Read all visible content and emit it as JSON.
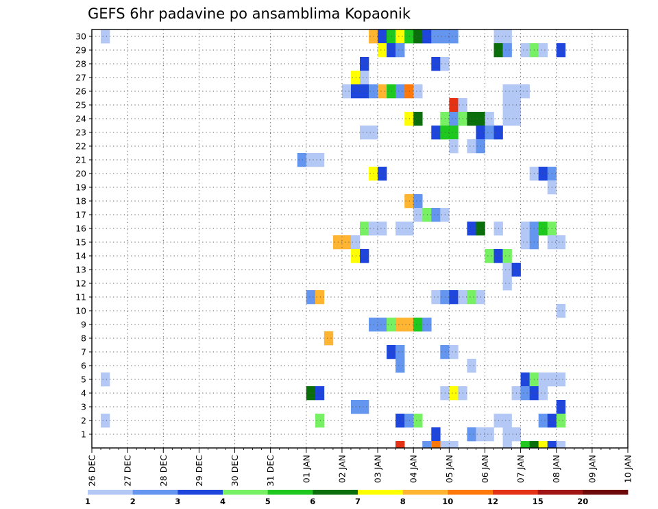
{
  "chart_data": {
    "type": "heatmap",
    "title": "GEFS 6hr padavine po ansamblima Kopaonik",
    "x_labels": [
      "26 DEC",
      "27 DEC",
      "28 DEC",
      "29 DEC",
      "30 DEC",
      "31 DEC",
      "01 JAN",
      "02 JAN",
      "03 JAN",
      "04 JAN",
      "05 JAN",
      "06 JAN",
      "07 JAN",
      "08 JAN",
      "09 JAN",
      "10 JAN"
    ],
    "y_labels": [
      "1",
      "2",
      "3",
      "4",
      "5",
      "6",
      "7",
      "8",
      "9",
      "10",
      "11",
      "12",
      "13",
      "14",
      "15",
      "16",
      "17",
      "18",
      "19",
      "20",
      "21",
      "22",
      "23",
      "24",
      "25",
      "26",
      "27",
      "28",
      "29",
      "30"
    ],
    "color_levels": [
      "1",
      "2",
      "3",
      "4",
      "5",
      "6",
      "7",
      "8",
      "10",
      "12",
      "15",
      "20"
    ],
    "color_scale": [
      "#b4c8f5",
      "#6496f0",
      "#1e46dc",
      "#78f064",
      "#1ec81e",
      "#0a6e0a",
      "#ffff00",
      "#ffb432",
      "#ff780a",
      "#e63214",
      "#a01414",
      "#6e0a0a"
    ],
    "grid": true,
    "steps_per_day": 4,
    "cells": [
      {
        "m": 30,
        "t": [
          [
            1,
            0
          ],
          [
            31,
            7
          ],
          [
            32,
            2
          ],
          [
            33,
            4
          ],
          [
            34,
            6
          ],
          [
            35,
            4
          ],
          [
            36,
            5
          ],
          [
            37,
            2
          ],
          [
            38,
            1
          ],
          [
            39,
            1
          ],
          [
            40,
            1
          ],
          [
            45,
            0
          ],
          [
            46,
            0
          ]
        ]
      },
      {
        "m": 29,
        "t": [
          [
            32,
            6
          ],
          [
            33,
            2
          ],
          [
            34,
            1
          ],
          [
            45,
            5
          ],
          [
            46,
            1
          ],
          [
            48,
            0
          ],
          [
            49,
            3
          ],
          [
            50,
            0
          ],
          [
            52,
            2
          ]
        ]
      },
      {
        "m": 28,
        "t": [
          [
            30,
            2
          ],
          [
            38,
            2
          ],
          [
            39,
            0
          ]
        ]
      },
      {
        "m": 27,
        "t": [
          [
            29,
            6
          ],
          [
            30,
            0
          ]
        ]
      },
      {
        "m": 26,
        "t": [
          [
            28,
            0
          ],
          [
            29,
            2
          ],
          [
            30,
            2
          ],
          [
            31,
            1
          ],
          [
            32,
            7
          ],
          [
            33,
            4
          ],
          [
            34,
            1
          ],
          [
            35,
            8
          ],
          [
            36,
            0
          ],
          [
            46,
            0
          ],
          [
            47,
            0
          ],
          [
            48,
            0
          ]
        ]
      },
      {
        "m": 25,
        "t": [
          [
            40,
            9
          ],
          [
            41,
            0
          ],
          [
            46,
            0
          ],
          [
            47,
            0
          ]
        ]
      },
      {
        "m": 24,
        "t": [
          [
            35,
            6
          ],
          [
            36,
            5
          ],
          [
            39,
            3
          ],
          [
            40,
            1
          ],
          [
            41,
            3
          ],
          [
            42,
            5
          ],
          [
            43,
            5
          ],
          [
            44,
            0
          ],
          [
            46,
            0
          ],
          [
            47,
            0
          ]
        ]
      },
      {
        "m": 23,
        "t": [
          [
            30,
            0
          ],
          [
            31,
            0
          ],
          [
            38,
            2
          ],
          [
            39,
            4
          ],
          [
            40,
            4
          ],
          [
            43,
            2
          ],
          [
            44,
            1
          ],
          [
            45,
            2
          ]
        ]
      },
      {
        "m": 22,
        "t": [
          [
            40,
            0
          ],
          [
            42,
            0
          ],
          [
            43,
            1
          ]
        ]
      },
      {
        "m": 21,
        "t": [
          [
            23,
            1
          ],
          [
            24,
            0
          ],
          [
            25,
            0
          ]
        ]
      },
      {
        "m": 20,
        "t": [
          [
            31,
            6
          ],
          [
            32,
            2
          ],
          [
            49,
            0
          ],
          [
            50,
            2
          ],
          [
            51,
            1
          ]
        ]
      },
      {
        "m": 19,
        "t": [
          [
            51,
            0
          ]
        ]
      },
      {
        "m": 18,
        "t": [
          [
            35,
            7
          ],
          [
            36,
            1
          ]
        ]
      },
      {
        "m": 17,
        "t": [
          [
            36,
            0
          ],
          [
            37,
            3
          ],
          [
            38,
            1
          ],
          [
            39,
            0
          ]
        ]
      },
      {
        "m": 16,
        "t": [
          [
            30,
            3
          ],
          [
            31,
            0
          ],
          [
            32,
            0
          ],
          [
            34,
            0
          ],
          [
            35,
            0
          ],
          [
            42,
            2
          ],
          [
            43,
            5
          ],
          [
            45,
            0
          ],
          [
            48,
            0
          ],
          [
            49,
            1
          ],
          [
            50,
            4
          ],
          [
            51,
            3
          ]
        ]
      },
      {
        "m": 15,
        "t": [
          [
            27,
            7
          ],
          [
            28,
            7
          ],
          [
            29,
            0
          ],
          [
            48,
            0
          ],
          [
            49,
            1
          ],
          [
            51,
            0
          ],
          [
            52,
            0
          ]
        ]
      },
      {
        "m": 14,
        "t": [
          [
            29,
            6
          ],
          [
            30,
            2
          ],
          [
            44,
            3
          ],
          [
            45,
            2
          ],
          [
            46,
            3
          ]
        ]
      },
      {
        "m": 13,
        "t": [
          [
            46,
            0
          ],
          [
            47,
            2
          ]
        ]
      },
      {
        "m": 12,
        "t": [
          [
            46,
            0
          ]
        ]
      },
      {
        "m": 11,
        "t": [
          [
            24,
            1
          ],
          [
            25,
            7
          ],
          [
            38,
            0
          ],
          [
            39,
            1
          ],
          [
            40,
            2
          ],
          [
            41,
            0
          ],
          [
            42,
            3
          ],
          [
            43,
            0
          ]
        ]
      },
      {
        "m": 10,
        "t": [
          [
            52,
            0
          ]
        ]
      },
      {
        "m": 9,
        "t": [
          [
            31,
            1
          ],
          [
            32,
            1
          ],
          [
            33,
            3
          ],
          [
            34,
            7
          ],
          [
            35,
            7
          ],
          [
            36,
            4
          ],
          [
            37,
            1
          ]
        ]
      },
      {
        "m": 8,
        "t": [
          [
            26,
            7
          ]
        ]
      },
      {
        "m": 7,
        "t": [
          [
            33,
            2
          ],
          [
            34,
            1
          ],
          [
            39,
            1
          ],
          [
            40,
            0
          ]
        ]
      },
      {
        "m": 6,
        "t": [
          [
            34,
            1
          ],
          [
            42,
            0
          ]
        ]
      },
      {
        "m": 5,
        "t": [
          [
            1,
            0
          ],
          [
            48,
            2
          ],
          [
            49,
            3
          ],
          [
            50,
            0
          ],
          [
            51,
            0
          ],
          [
            52,
            0
          ]
        ]
      },
      {
        "m": 4,
        "t": [
          [
            24,
            5
          ],
          [
            25,
            2
          ],
          [
            39,
            0
          ],
          [
            40,
            6
          ],
          [
            41,
            0
          ],
          [
            47,
            0
          ],
          [
            48,
            1
          ],
          [
            49,
            2
          ],
          [
            50,
            0
          ]
        ]
      },
      {
        "m": 3,
        "t": [
          [
            29,
            1
          ],
          [
            30,
            1
          ],
          [
            52,
            2
          ]
        ]
      },
      {
        "m": 2,
        "t": [
          [
            1,
            0
          ],
          [
            25,
            3
          ],
          [
            34,
            2
          ],
          [
            35,
            1
          ],
          [
            36,
            3
          ],
          [
            45,
            0
          ],
          [
            46,
            0
          ],
          [
            50,
            1
          ],
          [
            51,
            2
          ],
          [
            52,
            3
          ]
        ]
      },
      {
        "m": 1,
        "t": [
          [
            38,
            2
          ],
          [
            42,
            1
          ],
          [
            43,
            0
          ],
          [
            44,
            0
          ],
          [
            46,
            0
          ],
          [
            47,
            0
          ]
        ]
      },
      {
        "m": 0,
        "t": [
          [
            34,
            2
          ],
          [
            37,
            1
          ],
          [
            38,
            0
          ],
          [
            39,
            0
          ],
          [
            40,
            0
          ],
          [
            48,
            4
          ],
          [
            49,
            5
          ],
          [
            50,
            6
          ],
          [
            51,
            2
          ],
          [
            52,
            0
          ]
        ]
      },
      {
        "m": -1,
        "t": [
          [
            34,
            9
          ],
          [
            38,
            8
          ],
          [
            46,
            0
          ]
        ]
      }
    ]
  }
}
